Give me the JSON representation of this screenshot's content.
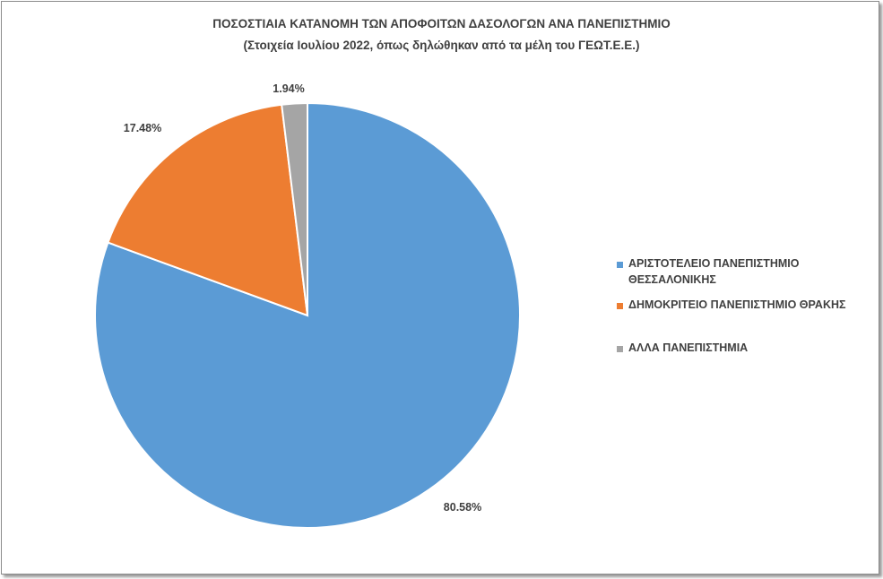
{
  "chart_data": {
    "type": "pie",
    "title": "ΠΟΣΟΣΤΙΑΙΑ ΚΑΤΑΝΟΜΗ ΤΩΝ ΑΠΟΦΟΙΤΩΝ ΔΑΣΟΛΟΓΩΝ ΑΝΑ ΠΑΝΕΠΙΣΤΗΜΙΟ",
    "subtitle": "(Στοιχεία Ιουλίου 2022, όπως δηλώθηκαν από τα μέλη του ΓΕΩΤ.Ε.Ε.)",
    "categories": [
      "ΑΡΙΣΤΟΤΕΛΕΙΟ ΠΑΝΕΠΙΣΤΗΜΙΟ ΘΕΣΣΑΛΟΝΙΚΗΣ",
      "ΔΗΜΟΚΡΙΤΕΙΟ ΠΑΝΕΠΙΣΤΗΜΙΟ ΘΡΑΚΗΣ",
      "ΑΛΛΑ ΠΑΝΕΠΙΣΤΗΜΙΑ"
    ],
    "values": [
      80.58,
      17.48,
      1.94
    ],
    "data_labels": [
      "80.58%",
      "17.48%",
      "1.94%"
    ],
    "colors": [
      "#5b9bd5",
      "#ed7d31",
      "#a5a5a5"
    ],
    "legend": "right"
  },
  "legend_lines": {
    "item0_line1": "ΑΡΙΣΤΟΤΕΛΕΙΟ ΠΑΝΕΠΙΣΤΗΜΙΟ",
    "item0_line2": "ΘΕΣΣΑΛΟΝΙΚΗΣ",
    "item1": "ΔΗΜΟΚΡΙΤΕΙΟ ΠΑΝΕΠΙΣΤΗΜΙΟ ΘΡΑΚΗΣ",
    "item2": "ΑΛΛΑ ΠΑΝΕΠΙΣΤΗΜΙΑ"
  }
}
